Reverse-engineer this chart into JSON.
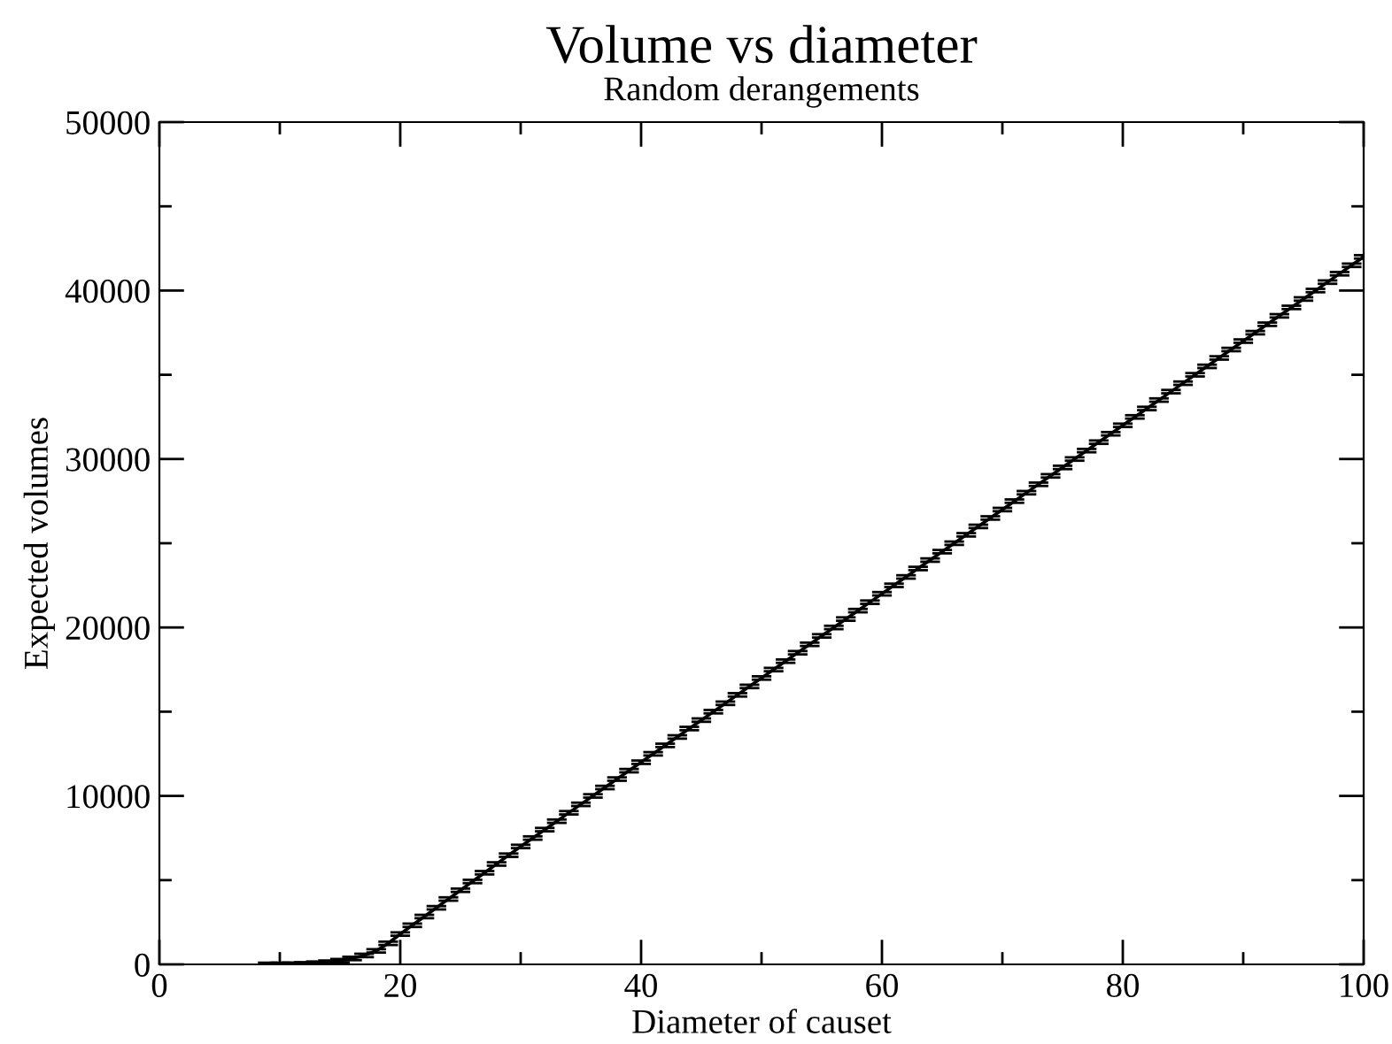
{
  "chart_data": {
    "type": "line",
    "title": "Volume vs diameter",
    "subtitle": "Random derangements",
    "xlabel": "Diameter of causet",
    "ylabel": "Expected volumes",
    "x": [
      9,
      10,
      11,
      12,
      13,
      14,
      15,
      16,
      17,
      18,
      19,
      20,
      21,
      22,
      23,
      24,
      25,
      26,
      27,
      28,
      29,
      30,
      31,
      32,
      33,
      34,
      35,
      36,
      37,
      38,
      39,
      40,
      41,
      42,
      43,
      44,
      45,
      46,
      47,
      48,
      49,
      50,
      51,
      52,
      53,
      54,
      55,
      56,
      57,
      58,
      59,
      60,
      61,
      62,
      63,
      64,
      65,
      66,
      67,
      68,
      69,
      70,
      71,
      72,
      73,
      74,
      75,
      76,
      77,
      78,
      79,
      80,
      81,
      82,
      83,
      84,
      85,
      86,
      87,
      88,
      89,
      90,
      91,
      92,
      93,
      94,
      95,
      96,
      97,
      98,
      99,
      100
    ],
    "series": [
      {
        "color": "#000000",
        "values": [
          0,
          0,
          10,
          30,
          70,
          130,
          220,
          350,
          530,
          800,
          1250,
          1800,
          2320,
          2840,
          3360,
          3880,
          4400,
          4920,
          5440,
          5960,
          6480,
          7000,
          7500,
          8000,
          8500,
          9000,
          9500,
          10000,
          10500,
          11000,
          11500,
          12000,
          12500,
          13000,
          13500,
          14000,
          14500,
          15000,
          15500,
          16000,
          16500,
          17000,
          17500,
          18000,
          18500,
          19000,
          19500,
          20000,
          20500,
          21000,
          21500,
          22000,
          22500,
          23000,
          23500,
          24000,
          24500,
          25000,
          25500,
          26000,
          26500,
          27000,
          27500,
          28000,
          28500,
          29000,
          29500,
          30000,
          30500,
          31000,
          31500,
          32000,
          32500,
          33000,
          33500,
          34000,
          34500,
          35000,
          35500,
          36000,
          36500,
          37000,
          37500,
          38000,
          38500,
          39000,
          39500,
          40000,
          40500,
          41000,
          41500,
          42000
        ],
        "errors": [
          100,
          100,
          100,
          100,
          100,
          100,
          100,
          100,
          100,
          100,
          100,
          100,
          100,
          100,
          100,
          100,
          100,
          100,
          100,
          100,
          100,
          100,
          100,
          100,
          100,
          100,
          100,
          100,
          100,
          100,
          100,
          100,
          100,
          100,
          100,
          100,
          100,
          100,
          100,
          100,
          100,
          100,
          100,
          100,
          100,
          100,
          100,
          100,
          100,
          100,
          100,
          100,
          100,
          100,
          100,
          100,
          100,
          100,
          100,
          100,
          100,
          100,
          100,
          100,
          100,
          100,
          100,
          100,
          100,
          100,
          100,
          100,
          100,
          100,
          100,
          100,
          100,
          100,
          100,
          100,
          100,
          100,
          100,
          100,
          100,
          100,
          100,
          100,
          100,
          100,
          100,
          100
        ]
      }
    ],
    "xlim": [
      0,
      100
    ],
    "ylim": [
      0,
      50000
    ],
    "xticks": [
      0,
      {
        "value": 10,
        "label": null
      },
      20,
      {
        "value": 30,
        "label": null
      },
      40,
      {
        "value": 50,
        "label": null
      },
      60,
      {
        "value": 70,
        "label": null
      },
      80,
      {
        "value": 90,
        "label": null
      },
      100
    ],
    "yticks": [
      0,
      {
        "value": 5000,
        "label": null
      },
      10000,
      {
        "value": 15000,
        "label": null
      },
      20000,
      {
        "value": 25000,
        "label": null
      },
      30000,
      {
        "value": 35000,
        "label": null
      },
      40000,
      {
        "value": 45000,
        "label": null
      },
      50000
    ],
    "grid": false,
    "legend": false,
    "marker": "none",
    "line_style": "solid"
  }
}
